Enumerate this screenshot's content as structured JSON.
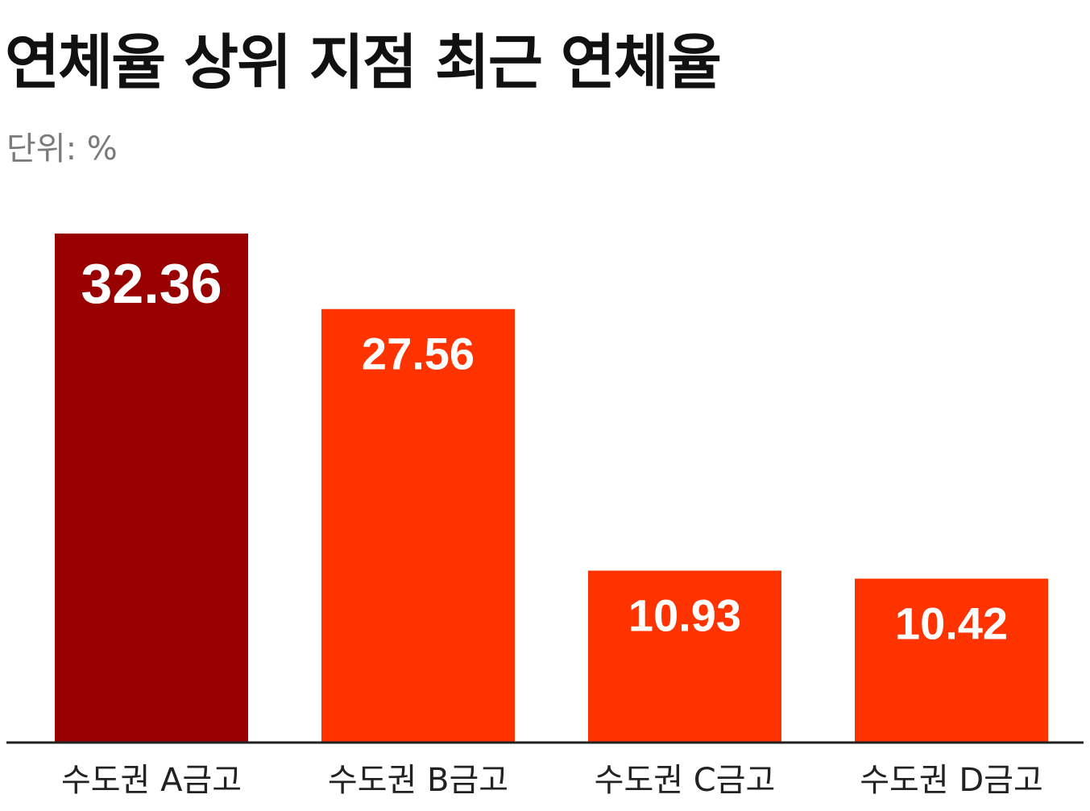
{
  "chart_data": {
    "type": "bar",
    "title": "연체율 상위 지점 최근 연체율",
    "unit_label": "단위: %",
    "categories": [
      "수도권 A금고",
      "수도권 B금고",
      "수도권 C금고",
      "수도권 D금고"
    ],
    "values": [
      32.36,
      27.56,
      10.93,
      10.42
    ],
    "value_labels": [
      "32.36",
      "27.56",
      "10.93",
      "10.42"
    ],
    "bar_colors": [
      "#990000",
      "#ff3300",
      "#ff3300",
      "#ff3300"
    ],
    "ylim": [
      0,
      32.36
    ],
    "grid": false,
    "legend": "none"
  }
}
